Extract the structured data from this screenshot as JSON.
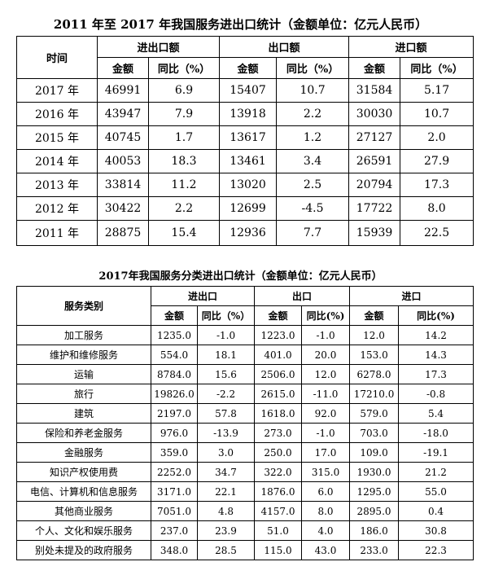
{
  "table1": {
    "title": "2011 年至 2017 年我国服务进出口统计（金额单位：亿元人民币）",
    "header": {
      "time": "时间",
      "groups": [
        "进出口额",
        "出口额",
        "进口额"
      ],
      "amount": "金额",
      "yoy": "同比（%）"
    },
    "rows": [
      [
        "2017 年",
        "46991",
        "6.9",
        "15407",
        "10.7",
        "31584",
        "5.17"
      ],
      [
        "2016 年",
        "43947",
        "7.9",
        "13918",
        "2.2",
        "30030",
        "10.7"
      ],
      [
        "2015 年",
        "40745",
        "1.7",
        "13617",
        "1.2",
        "27127",
        "2.0"
      ],
      [
        "2014 年",
        "40053",
        "18.3",
        "13461",
        "3.4",
        "26591",
        "27.9"
      ],
      [
        "2013 年",
        "33814",
        "11.2",
        "13020",
        "2.5",
        "20794",
        "17.3"
      ],
      [
        "2012 年",
        "30422",
        "2.2",
        "12699",
        "-4.5",
        "17722",
        "8.0"
      ],
      [
        "2011 年",
        "28875",
        "15.4",
        "12936",
        "7.7",
        "15939",
        "22.5"
      ]
    ]
  },
  "table2": {
    "title": "2017年我国服务分类进出口统计（金额单位：亿元人民币）",
    "header": {
      "category": "服务类别",
      "groups": [
        "进出口",
        "出口",
        "进口"
      ],
      "amount": "金额",
      "yoy_cols": [
        "同比（%）",
        "同比(%)",
        "同比(%)"
      ]
    },
    "rows": [
      [
        "加工服务",
        "1235.0",
        "-1.0",
        "1223.0",
        "-1.0",
        "12.0",
        "14.2"
      ],
      [
        "维护和维修服务",
        "554.0",
        "18.1",
        "401.0",
        "20.0",
        "153.0",
        "14.3"
      ],
      [
        "运输",
        "8784.0",
        "15.6",
        "2506.0",
        "12.0",
        "6278.0",
        "17.3"
      ],
      [
        "旅行",
        "19826.0",
        "-2.2",
        "2615.0",
        "-11.0",
        "17210.0",
        "-0.8"
      ],
      [
        "建筑",
        "2197.0",
        "57.8",
        "1618.0",
        "92.0",
        "579.0",
        "5.4"
      ],
      [
        "保险和养老金服务",
        "976.0",
        "-13.9",
        "273.0",
        "-1.0",
        "703.0",
        "-18.0"
      ],
      [
        "金融服务",
        "359.0",
        "3.0",
        "250.0",
        "17.0",
        "109.0",
        "-19.1"
      ],
      [
        "知识产权使用费",
        "2252.0",
        "34.7",
        "322.0",
        "315.0",
        "1930.0",
        "21.2"
      ],
      [
        "电信、计算机和信息服务",
        "3171.0",
        "22.1",
        "1876.0",
        "6.0",
        "1295.0",
        "55.0"
      ],
      [
        "其他商业服务",
        "7051.0",
        "4.8",
        "4157.0",
        "8.0",
        "2895.0",
        "0.4"
      ],
      [
        "个人、文化和娱乐服务",
        "237.0",
        "23.9",
        "51.0",
        "4.0",
        "186.0",
        "30.8"
      ],
      [
        "别处未提及的政府服务",
        "348.0",
        "28.5",
        "115.0",
        "43.0",
        "233.0",
        "22.3"
      ]
    ]
  }
}
